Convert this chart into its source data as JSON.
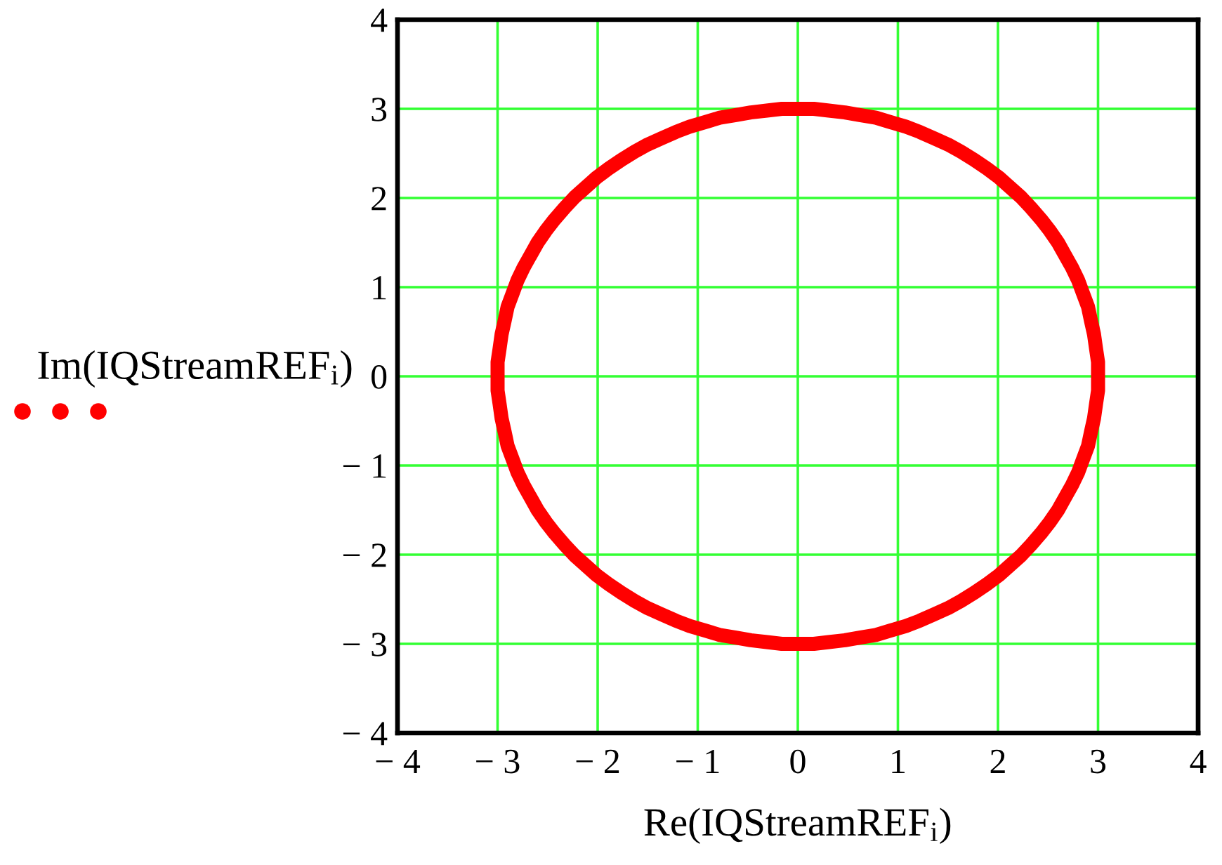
{
  "chart_data": {
    "type": "line",
    "xlabel": "Re(IQStreamREF$_{i}$)",
    "ylabel": "Im(IQStreamREF$_{i}$)",
    "xlim": [
      -4,
      4
    ],
    "ylim": [
      -4,
      4
    ],
    "xticks": [
      {
        "value": -4,
        "label": "− 4"
      },
      {
        "value": -3,
        "label": "− 3"
      },
      {
        "value": -2,
        "label": "− 2"
      },
      {
        "value": -1,
        "label": "− 1"
      },
      0,
      1,
      2,
      3,
      4
    ],
    "yticks": [
      {
        "value": -4,
        "label": "− 4"
      },
      {
        "value": -3,
        "label": "− 3"
      },
      {
        "value": -2,
        "label": "− 2"
      },
      {
        "value": -1,
        "label": "− 1"
      },
      0,
      1,
      2,
      3,
      4
    ],
    "grid": true,
    "series": [
      {
        "color": "#ff0000",
        "x": [
          3,
          3,
          2.98,
          2.96,
          2.93,
          2.9,
          2.85,
          2.8,
          2.74,
          2.67,
          2.6,
          2.52,
          2.43,
          2.33,
          2.23,
          2.12,
          2.01,
          1.89,
          1.76,
          1.63,
          1.5,
          1.36,
          1.22,
          1.08,
          0.93,
          0.78,
          0.62,
          0.47,
          0.31,
          0.16,
          0,
          -0.16,
          -0.31,
          -0.47,
          -0.62,
          -0.78,
          -0.93,
          -1.08,
          -1.22,
          -1.36,
          -1.5,
          -1.63,
          -1.76,
          -1.89,
          -2.01,
          -2.12,
          -2.23,
          -2.33,
          -2.43,
          -2.52,
          -2.6,
          -2.67,
          -2.74,
          -2.8,
          -2.85,
          -2.9,
          -2.93,
          -2.96,
          -2.98,
          -3,
          -3,
          -3,
          -2.98,
          -2.96,
          -2.93,
          -2.9,
          -2.85,
          -2.8,
          -2.74,
          -2.67,
          -2.6,
          -2.52,
          -2.43,
          -2.33,
          -2.23,
          -2.12,
          -2.01,
          -1.89,
          -1.76,
          -1.63,
          -1.5,
          -1.36,
          -1.22,
          -1.08,
          -0.93,
          -0.78,
          -0.62,
          -0.47,
          -0.31,
          -0.16,
          0,
          0.16,
          0.31,
          0.47,
          0.62,
          0.78,
          0.93,
          1.08,
          1.22,
          1.36,
          1.5,
          1.63,
          1.76,
          1.89,
          2.01,
          2.12,
          2.23,
          2.33,
          2.43,
          2.52,
          2.6,
          2.67,
          2.74,
          2.8,
          2.85,
          2.9,
          2.93,
          2.96,
          2.98,
          3,
          3,
          3
        ],
        "values": [
          0,
          0.16,
          0.31,
          0.47,
          0.62,
          0.78,
          0.93,
          1.08,
          1.22,
          1.36,
          1.5,
          1.63,
          1.76,
          1.89,
          2.01,
          2.12,
          2.23,
          2.33,
          2.43,
          2.52,
          2.6,
          2.67,
          2.74,
          2.8,
          2.85,
          2.9,
          2.93,
          2.96,
          2.98,
          3,
          3,
          3,
          2.98,
          2.96,
          2.93,
          2.9,
          2.85,
          2.8,
          2.74,
          2.67,
          2.6,
          2.52,
          2.43,
          2.33,
          2.23,
          2.12,
          2.01,
          1.89,
          1.76,
          1.63,
          1.5,
          1.36,
          1.22,
          1.08,
          0.93,
          0.78,
          0.62,
          0.47,
          0.31,
          0.16,
          0,
          -0.16,
          -0.31,
          -0.47,
          -0.62,
          -0.78,
          -0.93,
          -1.08,
          -1.22,
          -1.36,
          -1.5,
          -1.63,
          -1.76,
          -1.89,
          -2.01,
          -2.12,
          -2.23,
          -2.33,
          -2.43,
          -2.52,
          -2.6,
          -2.67,
          -2.74,
          -2.8,
          -2.85,
          -2.9,
          -2.93,
          -2.96,
          -2.98,
          -3,
          -3,
          -3,
          -2.98,
          -2.96,
          -2.93,
          -2.9,
          -2.85,
          -2.8,
          -2.74,
          -2.67,
          -2.6,
          -2.52,
          -2.43,
          -2.33,
          -2.23,
          -2.12,
          -2.01,
          -1.89,
          -1.76,
          -1.63,
          -1.5,
          -1.36,
          -1.22,
          -1.08,
          -0.93,
          -0.78,
          -0.62,
          -0.47,
          -0.31,
          -0.16,
          0,
          0.16
        ]
      }
    ]
  }
}
